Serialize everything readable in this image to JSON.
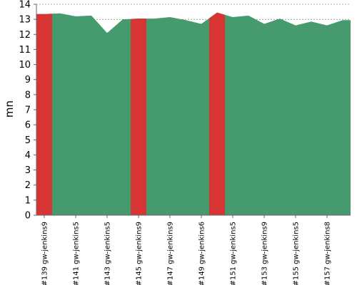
{
  "chart_data": {
    "type": "area",
    "ylabel": "mn",
    "xlabel": "",
    "title": "",
    "ylim": [
      0,
      14
    ],
    "yticks": [
      0,
      1,
      2,
      3,
      4,
      5,
      6,
      7,
      8,
      9,
      10,
      11,
      12,
      13,
      14
    ],
    "grid": "horizontal dashed",
    "colors": {
      "success": "#459b6e",
      "failure": "#d63534"
    },
    "x_tick_labels": [
      "#139 gw-jenkins9",
      "#141 gw-jenkins5",
      "#143 gw-jenkins5",
      "#145 gw-jenkins9",
      "#147 gw-jenkins9",
      "#149 gw-jenkins6",
      "#151 gw-jenkins5",
      "#153 gw-jenkins9",
      "#155 gw-jenkins5",
      "#157 gw-jenkins8"
    ],
    "x": [
      139,
      140,
      141,
      142,
      143,
      144,
      145,
      146,
      147,
      148,
      149,
      150,
      151,
      152,
      153,
      154,
      155,
      156,
      157,
      158
    ],
    "values": [
      13.35,
      13.4,
      13.2,
      13.25,
      12.1,
      13.0,
      13.05,
      13.05,
      13.15,
      12.95,
      12.7,
      13.45,
      13.15,
      13.25,
      12.7,
      13.05,
      12.6,
      12.85,
      12.6,
      12.95
    ],
    "status": [
      "failure",
      "success",
      "success",
      "success",
      "success",
      "success",
      "failure",
      "success",
      "success",
      "success",
      "success",
      "failure",
      "success",
      "success",
      "success",
      "success",
      "success",
      "success",
      "success",
      "success"
    ]
  }
}
